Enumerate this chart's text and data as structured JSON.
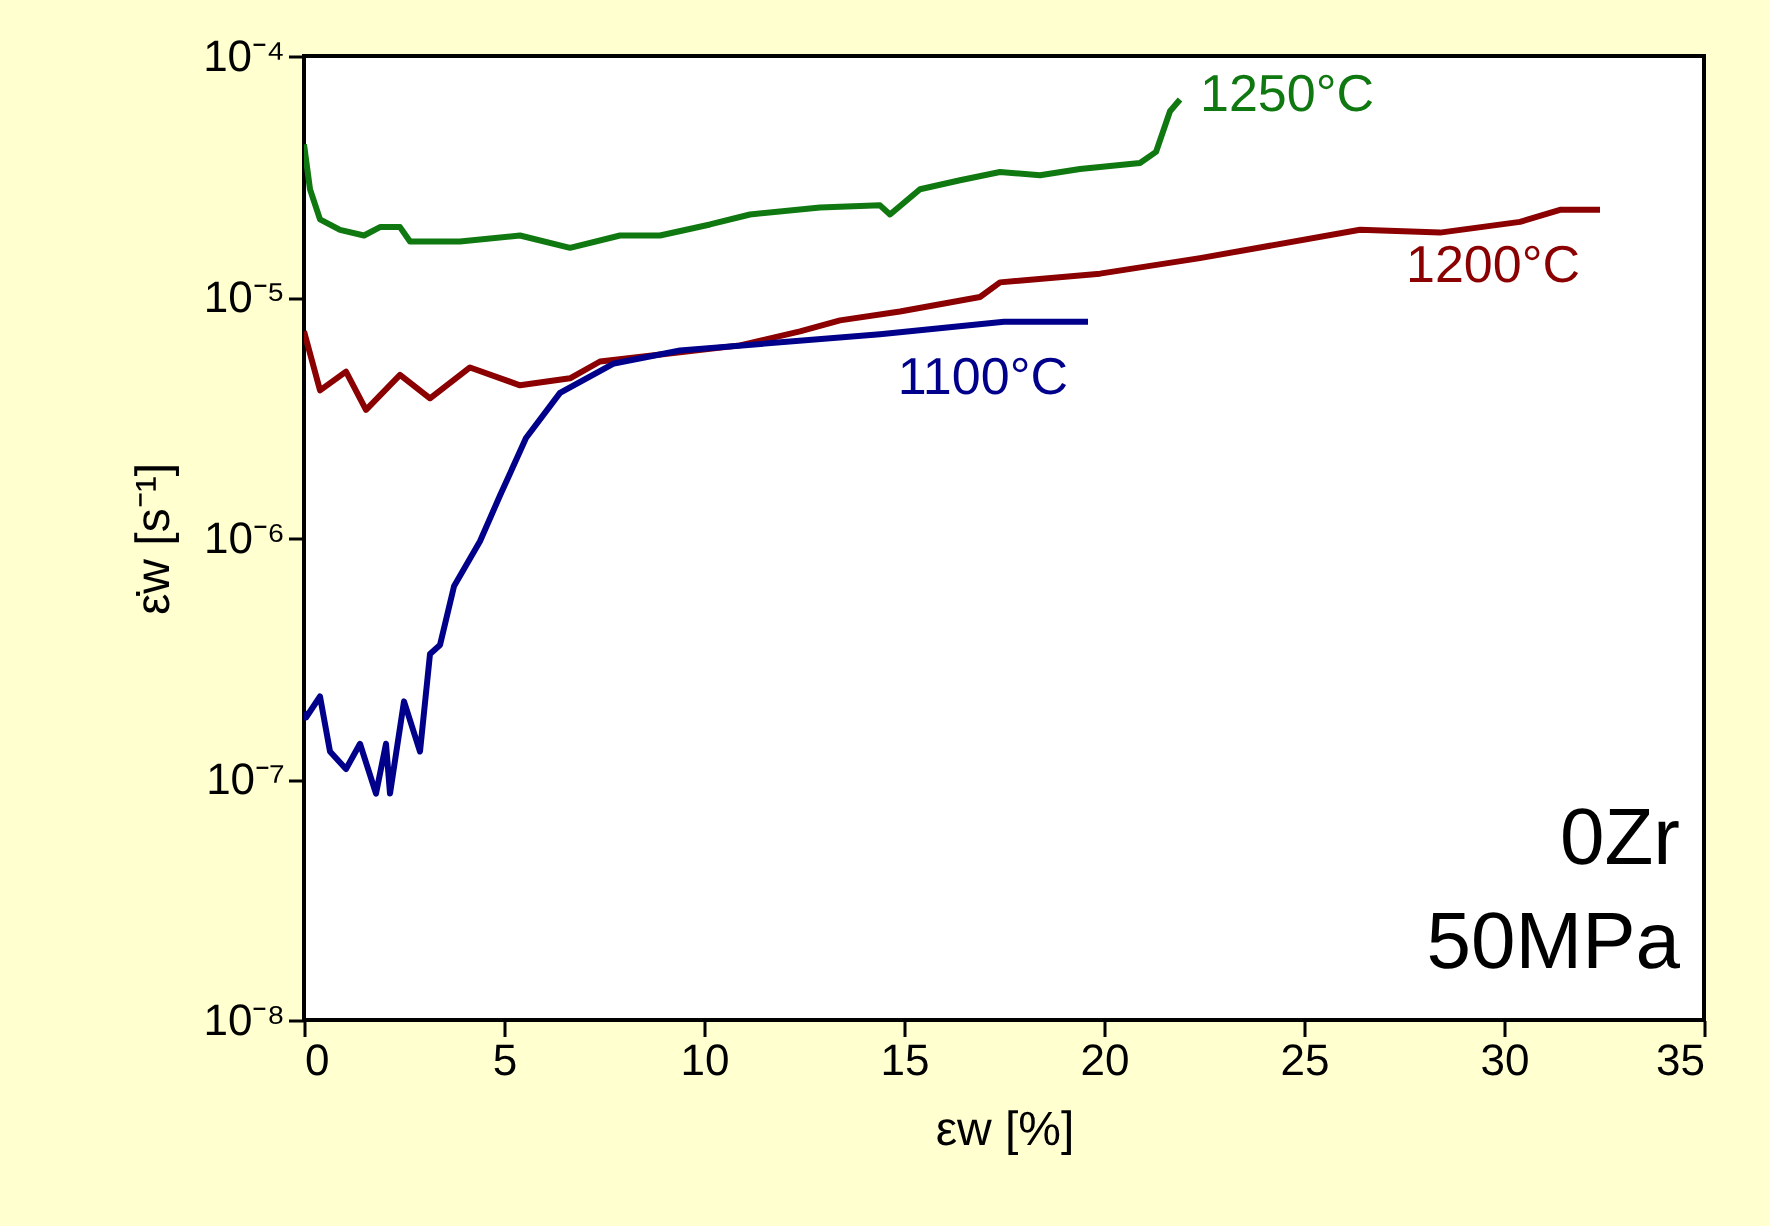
{
  "chart_data": {
    "type": "line",
    "xlabel": "εw [%]",
    "ylabel": "ε̇w [s⁻¹]",
    "log": "y",
    "xlim": [
      0,
      35
    ],
    "xticks": [
      0,
      5,
      10,
      15,
      20,
      25,
      30,
      35
    ],
    "ylim": [
      1e-08,
      0.0001
    ],
    "yticks": [
      {
        "value": 1e-08,
        "label": "10⁻⁸"
      },
      {
        "value": 1e-07,
        "label": "10⁻⁷"
      },
      {
        "value": 1e-06,
        "label": "10⁻⁶"
      },
      {
        "value": 1e-05,
        "label": "10⁻⁵"
      },
      {
        "value": 0.0001,
        "label": "10⁻⁴"
      }
    ],
    "grid": false,
    "legend": false,
    "line_style": "solid",
    "marker": "none",
    "annotations": [
      "0Zr",
      "50MPa"
    ],
    "series": [
      {
        "name": "1250°C",
        "color": "#107810",
        "x": [
          0,
          0.15,
          0.4,
          0.9,
          1.5,
          1.9,
          2.4,
          2.65,
          3.9,
          5.4,
          6.65,
          7.9,
          8.9,
          10.15,
          11.15,
          12.9,
          14.4,
          14.65,
          15.4,
          16.4,
          17.4,
          18.4,
          19.4,
          20.9,
          21.3,
          21.65,
          21.9
        ],
        "values": [
          4.3e-05,
          2.8e-05,
          2.1e-05,
          1.9e-05,
          1.8e-05,
          1.95e-05,
          1.95e-05,
          1.7e-05,
          1.7e-05,
          1.8e-05,
          1.6e-05,
          1.8e-05,
          1.8e-05,
          2e-05,
          2.2e-05,
          2.35e-05,
          2.4e-05,
          2.2e-05,
          2.8e-05,
          3.05e-05,
          3.3e-05,
          3.2e-05,
          3.4e-05,
          3.6e-05,
          4e-05,
          5.9e-05,
          6.6e-05
        ]
      },
      {
        "name": "1200°C",
        "color": "#8b0000",
        "x": [
          0,
          0.4,
          1.05,
          1.55,
          2.4,
          3.15,
          4.15,
          5.4,
          6.65,
          7.4,
          9.4,
          10.9,
          12.4,
          13.4,
          14.9,
          16.9,
          17.4,
          19.9,
          22.4,
          26.4,
          28.4,
          30.4,
          31.4,
          32.4
        ],
        "values": [
          7.2e-06,
          4.1e-06,
          4.9e-06,
          3.4e-06,
          4.75e-06,
          3.8e-06,
          5.1e-06,
          4.3e-06,
          4.6e-06,
          5.4e-06,
          5.9e-06,
          6.3e-06,
          7.2e-06,
          8e-06,
          8.7e-06,
          1e-05,
          1.15e-05,
          1.25e-05,
          1.45e-05,
          1.9e-05,
          1.85e-05,
          2.05e-05,
          2.3e-05,
          2.3e-05
        ]
      },
      {
        "name": "1100°C",
        "color": "#00008b",
        "x": [
          0,
          0.05,
          0.4,
          0.65,
          1.05,
          1.4,
          1.8,
          2.05,
          2.15,
          2.5,
          2.9,
          3.15,
          3.4,
          3.75,
          4.4,
          4.9,
          5.55,
          6.4,
          7.75,
          9.4,
          14.4,
          17.5,
          19.6
        ],
        "values": [
          1.9e-07,
          1.8e-07,
          2.2e-07,
          1.3e-07,
          1.1e-07,
          1.4e-07,
          8.7e-08,
          1.4e-07,
          8.7e-08,
          2.1e-07,
          1.3e-07,
          3.3e-07,
          3.6e-07,
          6.3e-07,
          9.7e-07,
          1.5e-06,
          2.6e-06,
          4e-06,
          5.3e-06,
          6e-06,
          7e-06,
          7.9e-06,
          7.9e-06
        ]
      }
    ]
  }
}
